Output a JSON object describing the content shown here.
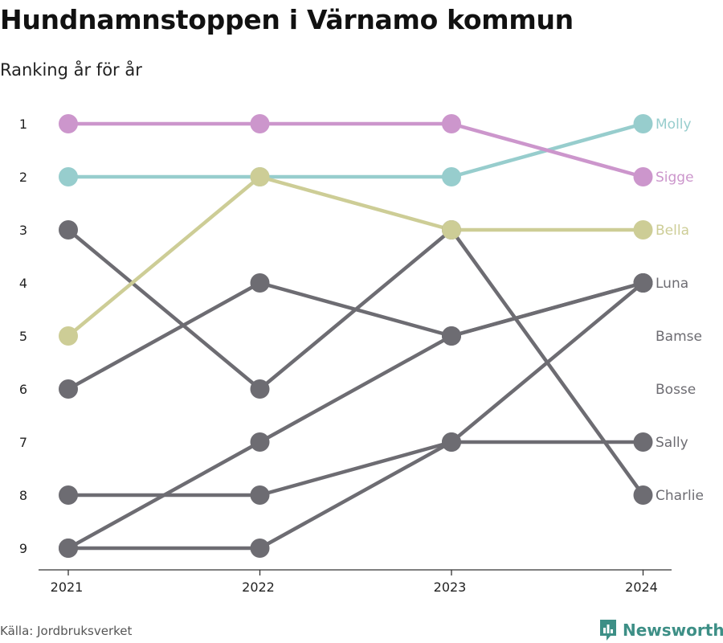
{
  "title": "Hundnamnstoppen i Värnamo kommun",
  "subtitle": "Ranking år för år",
  "source": "Källa: Jordbruksverket",
  "brand": "Newsworthy",
  "colors": {
    "Molly": "#97cdcd",
    "Sigge": "#cc96cc",
    "Bella": "#cdcd96",
    "other": "#6d6c72",
    "brand": "#3d8f86"
  },
  "chart_data": {
    "type": "line",
    "x": [
      "2021",
      "2022",
      "2023",
      "2024"
    ],
    "y_ticks": [
      "1",
      "2",
      "3",
      "4",
      "5",
      "6",
      "7",
      "8",
      "9"
    ],
    "ylim": [
      1,
      9
    ],
    "y_reversed": true,
    "series": [
      {
        "name": "Molly",
        "values": [
          2,
          2,
          2,
          1
        ]
      },
      {
        "name": "Sigge",
        "values": [
          1,
          1,
          1,
          2
        ]
      },
      {
        "name": "Bella",
        "values": [
          5,
          2,
          3,
          3
        ]
      },
      {
        "name": "Luna",
        "values": [
          6,
          4,
          5,
          4
        ]
      },
      {
        "name": "Bamse",
        "values": [
          9,
          7,
          5,
          4
        ]
      },
      {
        "name": "Bosse",
        "values": [
          9,
          9,
          7,
          4
        ]
      },
      {
        "name": "Sally",
        "values": [
          8,
          8,
          7,
          7
        ]
      },
      {
        "name": "Charlie",
        "values": [
          3,
          6,
          3,
          8
        ]
      }
    ],
    "end_labels": [
      {
        "name": "Molly",
        "rank": 1
      },
      {
        "name": "Sigge",
        "rank": 2
      },
      {
        "name": "Bella",
        "rank": 3
      },
      {
        "name": "Luna",
        "rank": 4
      },
      {
        "name": "Bamse",
        "rank": 5
      },
      {
        "name": "Bosse",
        "rank": 6
      },
      {
        "name": "Sally",
        "rank": 7
      },
      {
        "name": "Charlie",
        "rank": 8
      }
    ]
  }
}
